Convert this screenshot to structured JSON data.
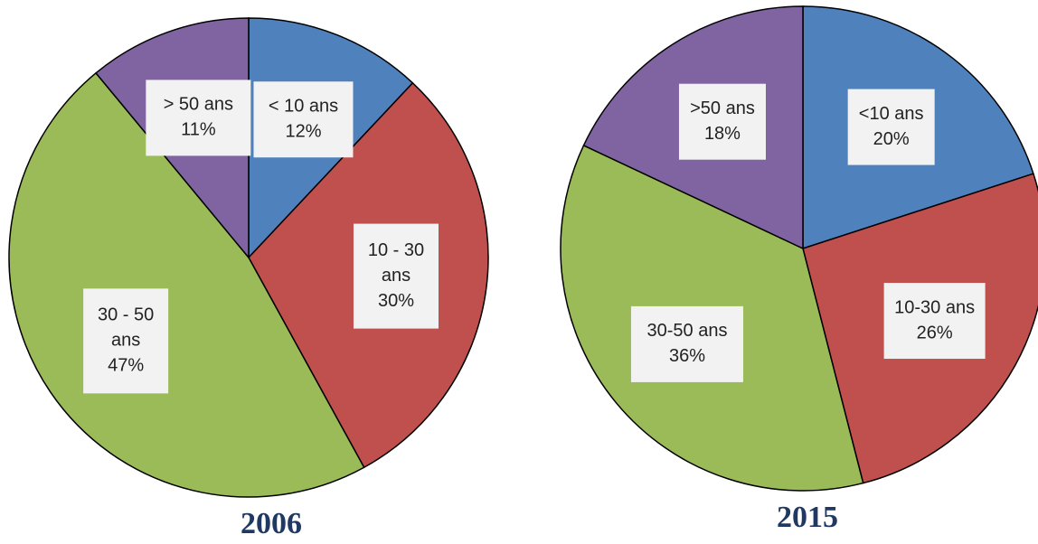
{
  "chart_data": [
    {
      "type": "pie",
      "title": "2006",
      "slices": [
        {
          "label": [
            "< 10 ans"
          ],
          "value": 12,
          "pct_text": "12%",
          "color": "#4f81bd"
        },
        {
          "label": [
            "10 - 30",
            "ans"
          ],
          "value": 30,
          "pct_text": "30%",
          "color": "#c0504d"
        },
        {
          "label": [
            "30 - 50",
            "ans"
          ],
          "value": 47,
          "pct_text": "47%",
          "color": "#9bbb59"
        },
        {
          "label": [
            "> 50 ans"
          ],
          "value": 11,
          "pct_text": "11%",
          "color": "#8064a2"
        }
      ]
    },
    {
      "type": "pie",
      "title": "2015",
      "slices": [
        {
          "label": [
            "<10 ans"
          ],
          "value": 20,
          "pct_text": "20%",
          "color": "#4f81bd"
        },
        {
          "label": [
            "10-30 ans"
          ],
          "value": 26,
          "pct_text": "26%",
          "color": "#c0504d"
        },
        {
          "label": [
            "30-50 ans"
          ],
          "value": 36,
          "pct_text": "36%",
          "color": "#9bbb59"
        },
        {
          "label": [
            ">50 ans"
          ],
          "value": 18,
          "pct_text": "18%",
          "color": "#8064a2"
        }
      ]
    }
  ]
}
